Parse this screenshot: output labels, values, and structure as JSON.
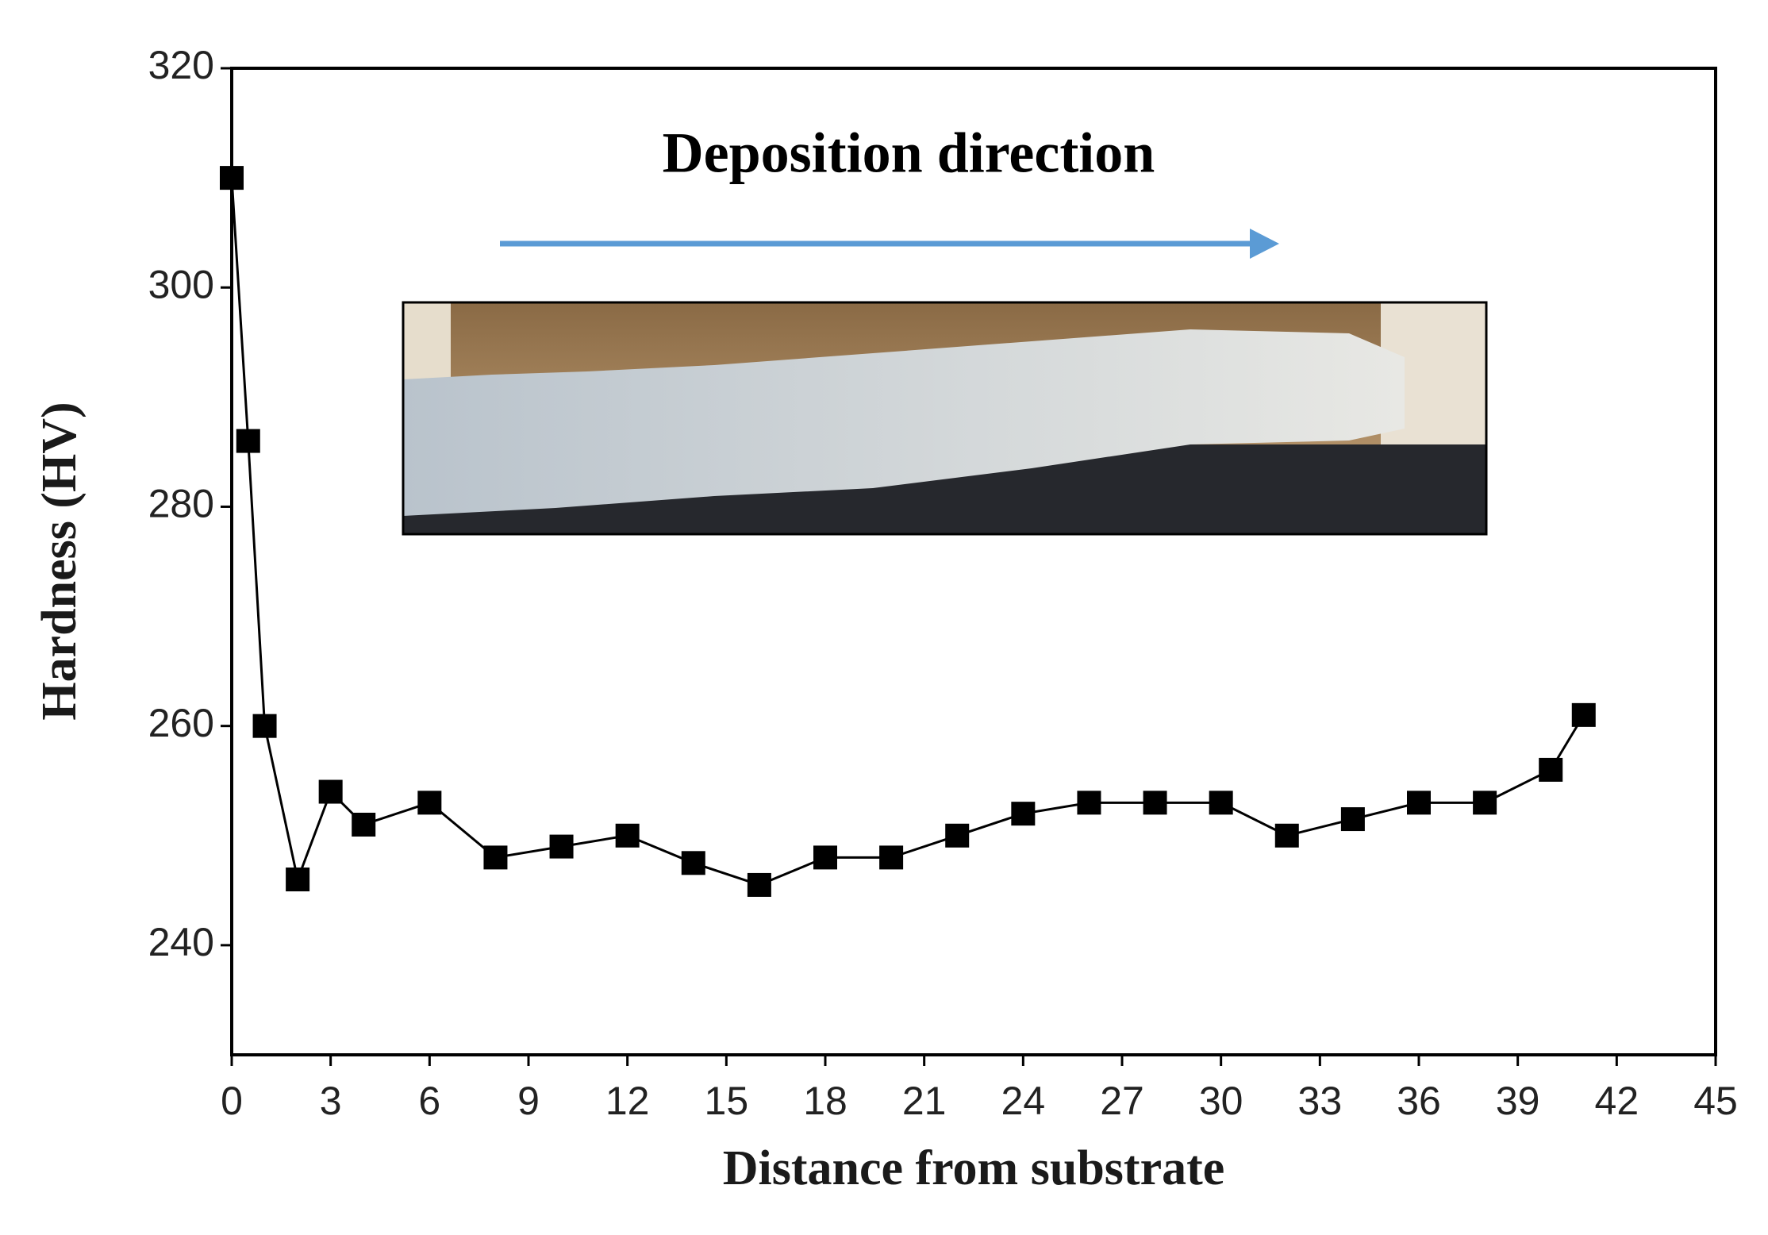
{
  "chart_data": {
    "type": "line",
    "annotation": "Deposition direction",
    "xlabel": "Distance from substrate",
    "ylabel": "Hardness (HV)",
    "x": [
      0,
      0.5,
      1,
      2,
      3,
      4,
      6,
      8,
      10,
      12,
      14,
      16,
      18,
      20,
      22,
      24,
      26,
      28,
      30,
      32,
      34,
      36,
      38,
      40,
      41
    ],
    "series": [
      {
        "color": "#000000",
        "marker": "square",
        "values": [
          310,
          286,
          260,
          246,
          254,
          251,
          253,
          248,
          249,
          250,
          247.5,
          245.5,
          248,
          248,
          250,
          252,
          253,
          253,
          253,
          250,
          251.5,
          253,
          253,
          256,
          261
        ]
      }
    ],
    "xlim": [
      0,
      45
    ],
    "xticks": [
      0,
      3,
      6,
      9,
      12,
      15,
      18,
      21,
      24,
      27,
      30,
      33,
      36,
      39,
      42,
      45
    ],
    "ylim": [
      230,
      320
    ],
    "yticks": [
      240,
      260,
      280,
      300,
      320
    ]
  }
}
